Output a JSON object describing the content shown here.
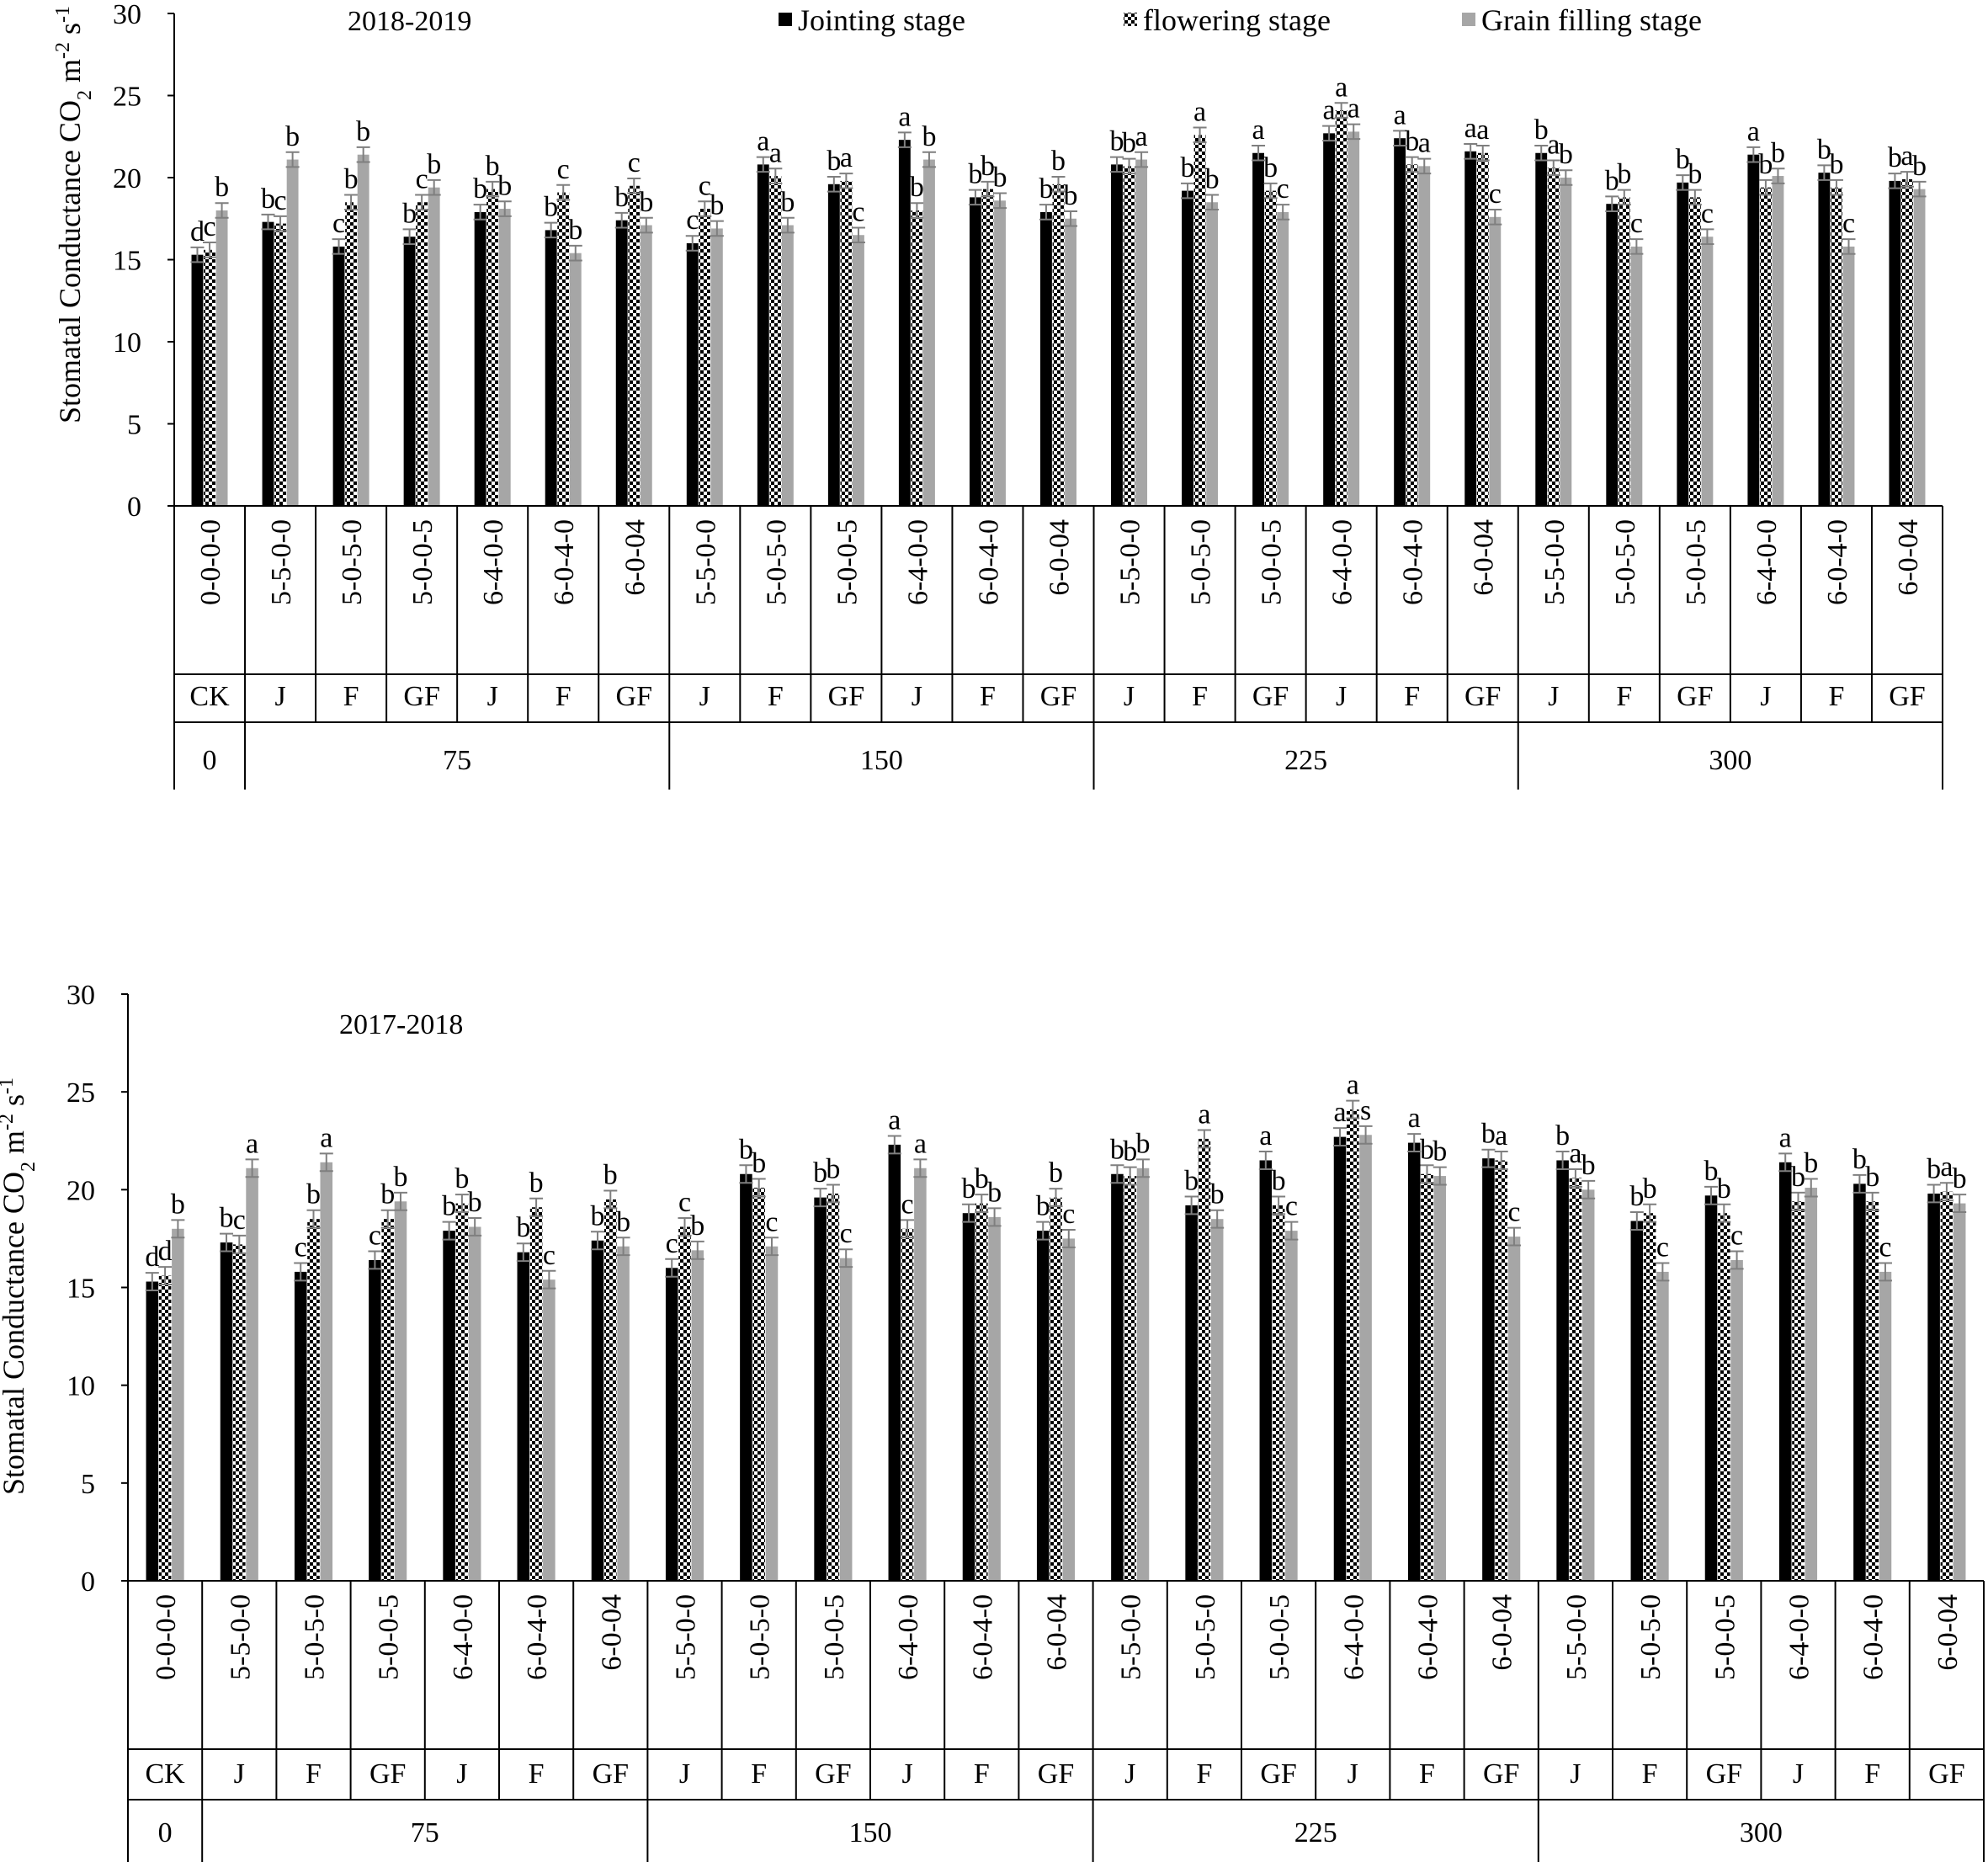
{
  "legend": [
    {
      "name": "Jointing stage",
      "pattern": "solid-black"
    },
    {
      "name": "flowering stage",
      "pattern": "checker-black"
    },
    {
      "name": "Grain filling stage",
      "pattern": "solid-gray"
    }
  ],
  "colors": {
    "jointing": "#000000",
    "flowering_checker": "#000000",
    "grain_filling": "#a6a6a6",
    "error_bar": "#7f7f7f"
  },
  "chart_data": [
    {
      "type": "bar",
      "title": "2018-2019",
      "ylabel_main": "Stomatal Conductance CO",
      "ylabel_sub": "2",
      "ylabel_unit": " m",
      "ylabel_exp1": "-2",
      "ylabel_s": " s",
      "ylabel_exp2": "-1",
      "ylim": [
        0,
        30
      ],
      "yticks": [
        0,
        5,
        10,
        15,
        20,
        25,
        30
      ],
      "categories": [
        "0-0-0-0",
        "5-5-0-0",
        "5-0-5-0",
        "5-0-0-5",
        "6-4-0-0",
        "6-0-4-0",
        "6-0-04",
        "5-5-0-0",
        "5-0-5-0",
        "5-0-0-5",
        "6-4-0-0",
        "6-0-4-0",
        "6-0-04",
        "5-5-0-0",
        "5-0-5-0",
        "5-0-0-5",
        "6-4-0-0",
        "6-0-4-0",
        "6-0-04",
        "5-5-0-0",
        "5-0-5-0",
        "5-0-0-5",
        "6-4-0-0",
        "6-0-4-0",
        "6-0-04"
      ],
      "stages": [
        "CK",
        "J",
        "F",
        "GF",
        "J",
        "F",
        "GF",
        "J",
        "F",
        "GF",
        "J",
        "F",
        "GF",
        "J",
        "F",
        "GF",
        "J",
        "F",
        "GF",
        "J",
        "F",
        "GF",
        "J",
        "F",
        "GF"
      ],
      "groups": [
        {
          "label": "0",
          "span": 1
        },
        {
          "label": "75",
          "span": 6
        },
        {
          "label": "150",
          "span": 6
        },
        {
          "label": "225",
          "span": 6
        },
        {
          "label": "300",
          "span": 6
        }
      ],
      "series": [
        {
          "name": "Jointing stage",
          "values": [
            15.3,
            17.3,
            15.8,
            16.4,
            17.9,
            16.8,
            17.4,
            16.0,
            20.8,
            19.6,
            22.3,
            18.8,
            17.9,
            20.8,
            19.2,
            21.5,
            22.7,
            22.4,
            21.6,
            21.5,
            18.4,
            19.7,
            21.4,
            20.3,
            19.8
          ]
        },
        {
          "name": "flowering stage",
          "values": [
            15.6,
            17.2,
            18.5,
            18.5,
            19.3,
            19.1,
            19.5,
            18.1,
            20.1,
            19.8,
            18.0,
            19.3,
            19.6,
            20.7,
            22.6,
            19.2,
            24.1,
            20.8,
            21.5,
            20.6,
            18.8,
            18.8,
            19.4,
            19.4,
            19.9
          ]
        },
        {
          "name": "Grain filling stage",
          "values": [
            18.0,
            21.1,
            21.4,
            19.4,
            18.1,
            15.4,
            17.1,
            16.9,
            17.1,
            16.5,
            21.1,
            18.6,
            17.5,
            21.1,
            18.5,
            17.9,
            22.8,
            20.7,
            17.6,
            20.0,
            15.8,
            16.4,
            20.1,
            15.8,
            19.3
          ]
        }
      ],
      "letters": [
        [
          "d",
          "c",
          "b"
        ],
        [
          "b",
          "c",
          "b"
        ],
        [
          "c",
          "b",
          "b"
        ],
        [
          "b",
          "c",
          "b"
        ],
        [
          "b",
          "b",
          "b"
        ],
        [
          "b",
          "c",
          "b"
        ],
        [
          "b",
          "c",
          "b"
        ],
        [
          "c",
          "c",
          "b"
        ],
        [
          "a",
          "a",
          "b"
        ],
        [
          "b",
          "a",
          "c"
        ],
        [
          "a",
          "b",
          "b"
        ],
        [
          "b",
          "b",
          "b"
        ],
        [
          "b",
          "b",
          "b"
        ],
        [
          "b",
          "b",
          "a"
        ],
        [
          "b",
          "a",
          "b"
        ],
        [
          "a",
          "b",
          "c"
        ],
        [
          "a",
          "a",
          "a"
        ],
        [
          "a",
          "b",
          "a"
        ],
        [
          "a",
          "a",
          "c"
        ],
        [
          "b",
          "a",
          "b"
        ],
        [
          "b",
          "b",
          "c"
        ],
        [
          "b",
          "b",
          "c"
        ],
        [
          "a",
          "b",
          "b"
        ],
        [
          "b",
          "b",
          "c"
        ],
        [
          "b",
          "a",
          "b"
        ]
      ]
    },
    {
      "type": "bar",
      "title": "2017-2018",
      "ylabel_main": "Stomatal Conductance CO",
      "ylabel_sub": "2",
      "ylabel_unit": " m",
      "ylabel_exp1": "-2",
      "ylabel_s": " s",
      "ylabel_exp2": "-1",
      "ylim": [
        0,
        30
      ],
      "yticks": [
        0,
        5,
        10,
        15,
        20,
        25,
        30
      ],
      "categories": [
        "0-0-0-0",
        "5-5-0-0",
        "5-0-5-0",
        "5-0-0-5",
        "6-4-0-0",
        "6-0-4-0",
        "6-0-04",
        "5-5-0-0",
        "5-0-5-0",
        "5-0-0-5",
        "6-4-0-0",
        "6-0-4-0",
        "6-0-04",
        "5-5-0-0",
        "5-0-5-0",
        "5-0-0-5",
        "6-4-0-0",
        "6-0-4-0",
        "6-0-04",
        "5-5-0-0",
        "5-0-5-0",
        "5-0-0-5",
        "6-4-0-0",
        "6-0-4-0",
        "6-0-04"
      ],
      "stages": [
        "CK",
        "J",
        "F",
        "GF",
        "J",
        "F",
        "GF",
        "J",
        "F",
        "GF",
        "J",
        "F",
        "GF",
        "J",
        "F",
        "GF",
        "J",
        "F",
        "GF",
        "J",
        "F",
        "GF",
        "J",
        "F",
        "GF"
      ],
      "groups": [
        {
          "label": "0",
          "span": 1
        },
        {
          "label": "75",
          "span": 6
        },
        {
          "label": "150",
          "span": 6
        },
        {
          "label": "225",
          "span": 6
        },
        {
          "label": "300",
          "span": 6
        }
      ],
      "series": [
        {
          "name": "Jointing stage",
          "values": [
            15.3,
            17.3,
            15.8,
            16.4,
            17.9,
            16.8,
            17.4,
            16.0,
            20.8,
            19.6,
            22.3,
            18.8,
            17.9,
            20.8,
            19.2,
            21.5,
            22.7,
            22.4,
            21.6,
            21.5,
            18.4,
            19.7,
            21.4,
            20.3,
            19.8
          ]
        },
        {
          "name": "flowering stage",
          "values": [
            15.6,
            17.2,
            18.5,
            18.5,
            19.3,
            19.1,
            19.5,
            18.1,
            20.1,
            19.8,
            18.0,
            19.3,
            19.6,
            20.7,
            22.6,
            19.2,
            24.1,
            20.8,
            21.5,
            20.6,
            18.8,
            18.8,
            19.4,
            19.4,
            19.9
          ]
        },
        {
          "name": "Grain filling stage",
          "values": [
            18.0,
            21.1,
            21.4,
            19.4,
            18.1,
            15.4,
            17.1,
            16.9,
            17.1,
            16.5,
            21.1,
            18.6,
            17.5,
            21.1,
            18.5,
            17.9,
            22.8,
            20.7,
            17.6,
            20.0,
            15.8,
            16.4,
            20.1,
            15.8,
            19.3
          ]
        }
      ],
      "letters": [
        [
          "d",
          "d",
          "b"
        ],
        [
          "b",
          "c",
          "a"
        ],
        [
          "c",
          "b",
          "a"
        ],
        [
          "c",
          "b",
          "b"
        ],
        [
          "b",
          "b",
          "b"
        ],
        [
          "b",
          "b",
          "c"
        ],
        [
          "b",
          "b",
          "b"
        ],
        [
          "c",
          "c",
          "b"
        ],
        [
          "b",
          "b",
          "c"
        ],
        [
          "b",
          "b",
          "c"
        ],
        [
          "a",
          "c",
          "a"
        ],
        [
          "b",
          "b",
          "b"
        ],
        [
          "b",
          "b",
          "c"
        ],
        [
          "b",
          "b",
          "b"
        ],
        [
          "b",
          "a",
          "b"
        ],
        [
          "a",
          "b",
          "c"
        ],
        [
          "a",
          "a",
          "s"
        ],
        [
          "a",
          "b",
          "b"
        ],
        [
          "b",
          "a",
          "c"
        ],
        [
          "b",
          "a",
          "b"
        ],
        [
          "b",
          "b",
          "c"
        ],
        [
          "b",
          "b",
          "c"
        ],
        [
          "a",
          "b",
          "b"
        ],
        [
          "b",
          "b",
          "c"
        ],
        [
          "b",
          "a",
          "b"
        ]
      ]
    }
  ]
}
